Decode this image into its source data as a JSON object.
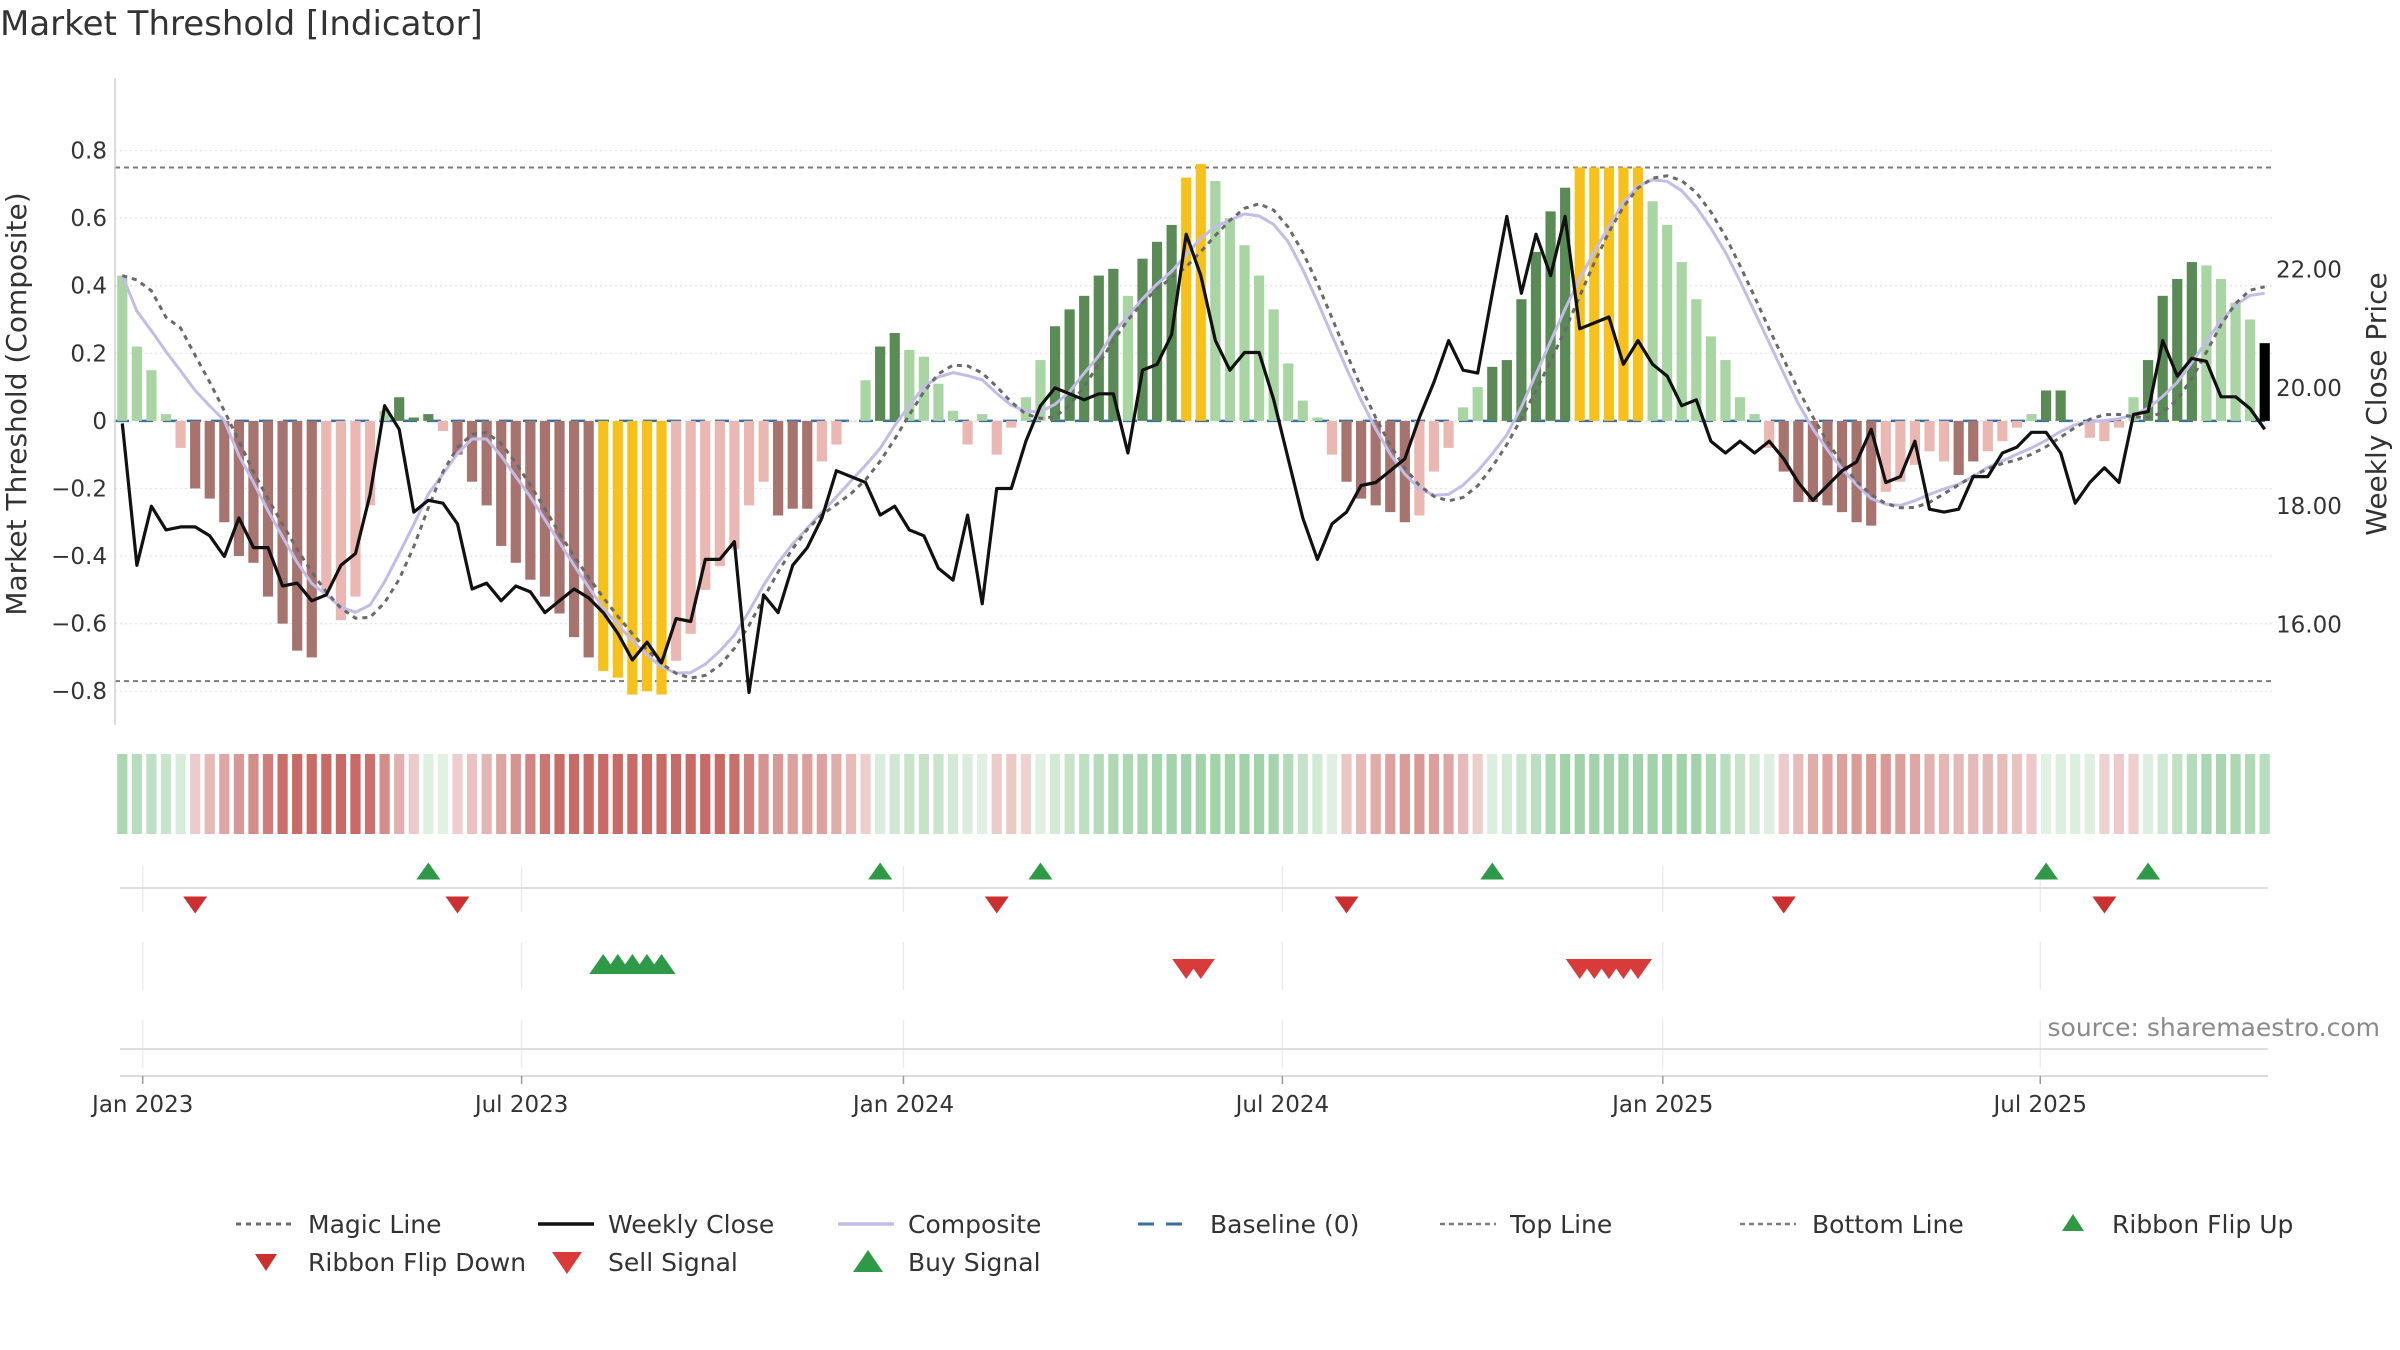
{
  "chart_data": {
    "type": "bar",
    "title": "Market Threshold [Indicator]",
    "source_note": "source: sharemaestro.com",
    "ylabel_left": "Market Threshold (Composite)",
    "ylabel_right": "Weekly Close Price",
    "ylim_left": [
      -0.9,
      0.92
    ],
    "ylim_right": [
      14.3,
      24.7
    ],
    "y_ticks_left": [
      0.8,
      0.6,
      0.4,
      0.2,
      0,
      -0.2,
      -0.4,
      -0.6,
      -0.8
    ],
    "y_tick_labels_left": [
      "0.8",
      "0.6",
      "0.4",
      "0.2",
      "0",
      "−0.2",
      "−0.4",
      "−0.6",
      "−0.8"
    ],
    "y_ticks_right": [
      22,
      20,
      18,
      16
    ],
    "y_tick_labels_right": [
      "22.00",
      "20.00",
      "18.00",
      "16.00"
    ],
    "x_tick_labels": [
      "Jan 2023",
      "Jul 2023",
      "Jan 2024",
      "Jul 2024",
      "Jan 2025",
      "Jul 2025"
    ],
    "x_tick_weeks": [
      1.4,
      27.4,
      53.6,
      79.6,
      105.7,
      131.6
    ],
    "top_line": 0.75,
    "bottom_line": -0.77,
    "baseline": 0,
    "colors": {
      "bull_strong": "#5a8a56",
      "bull_weak": "#a9d4a3",
      "bear_strong": "#a6736f",
      "bear_weak": "#eab7b3",
      "extreme": "#f7c11c",
      "weekly_close": "#111111",
      "composite": "#c3bce6",
      "magic_line": "#6a6a6a",
      "baseline": "#3a6f9b",
      "threshold_lines": "#7a7a7a",
      "ribbon_up": "#2e9a47",
      "ribbon_down": "#cc2f2f",
      "buy": "#2e9a47",
      "sell": "#d93a3a"
    },
    "composite_bars": [
      0.43,
      0.22,
      0.15,
      0.02,
      -0.08,
      -0.2,
      -0.23,
      -0.3,
      -0.4,
      -0.42,
      -0.52,
      -0.6,
      -0.68,
      -0.7,
      -0.5,
      -0.59,
      -0.52,
      -0.25,
      0.03,
      0.07,
      0.01,
      0.02,
      -0.03,
      -0.1,
      -0.18,
      -0.25,
      -0.37,
      -0.42,
      -0.47,
      -0.52,
      -0.57,
      -0.64,
      -0.7,
      -0.74,
      -0.76,
      -0.81,
      -0.8,
      -0.81,
      -0.71,
      -0.63,
      -0.5,
      -0.43,
      -0.38,
      -0.25,
      -0.18,
      -0.28,
      -0.26,
      -0.26,
      -0.12,
      -0.07,
      0,
      0.12,
      0.22,
      0.26,
      0.21,
      0.19,
      0.11,
      0.03,
      -0.07,
      0.02,
      -0.1,
      -0.02,
      0.07,
      0.18,
      0.28,
      0.33,
      0.37,
      0.43,
      0.45,
      0.37,
      0.48,
      0.53,
      0.58,
      0.72,
      0.76,
      0.71,
      0.6,
      0.52,
      0.43,
      0.33,
      0.17,
      0.06,
      0.01,
      -0.1,
      -0.18,
      -0.23,
      -0.25,
      -0.27,
      -0.3,
      -0.28,
      -0.15,
      -0.08,
      0.04,
      0.1,
      0.16,
      0.18,
      0.36,
      0.5,
      0.62,
      0.69,
      0.75,
      0.75,
      0.75,
      0.75,
      0.75,
      0.65,
      0.58,
      0.47,
      0.36,
      0.25,
      0.18,
      0.07,
      0.02,
      -0.08,
      -0.15,
      -0.24,
      -0.24,
      -0.25,
      -0.27,
      -0.3,
      -0.31,
      -0.21,
      -0.18,
      -0.13,
      -0.09,
      -0.12,
      -0.16,
      -0.12,
      -0.09,
      -0.06,
      -0.02,
      0.02,
      0.09,
      0.09,
      0,
      -0.05,
      -0.06,
      -0.02,
      0.07,
      0.18,
      0.37,
      0.42,
      0.47,
      0.46,
      0.42,
      0.35,
      0.3,
      0.23
    ],
    "bar_colors": [
      "bull_weak",
      "bull_weak",
      "bull_weak",
      "bull_weak",
      "bear_weak",
      "bear_strong",
      "bear_strong",
      "bear_strong",
      "bear_strong",
      "bear_strong",
      "bear_strong",
      "bear_strong",
      "bear_strong",
      "bear_strong",
      "bear_weak",
      "bear_weak",
      "bear_weak",
      "bear_weak",
      "bull_weak",
      "bull_strong",
      "bull_strong",
      "bull_strong",
      "bear_weak",
      "bear_strong",
      "bear_strong",
      "bear_strong",
      "bear_strong",
      "bear_strong",
      "bear_strong",
      "bear_strong",
      "bear_strong",
      "bear_strong",
      "bear_strong",
      "extreme",
      "extreme",
      "extreme",
      "extreme",
      "extreme",
      "bear_weak",
      "bear_weak",
      "bear_weak",
      "bear_weak",
      "bear_weak",
      "bear_weak",
      "bear_weak",
      "bear_strong",
      "bear_strong",
      "bear_strong",
      "bear_weak",
      "bear_weak",
      "bull_weak",
      "bull_weak",
      "bull_strong",
      "bull_strong",
      "bull_weak",
      "bull_weak",
      "bull_weak",
      "bull_weak",
      "bear_weak",
      "bull_weak",
      "bear_weak",
      "bear_weak",
      "bull_weak",
      "bull_weak",
      "bull_strong",
      "bull_strong",
      "bull_strong",
      "bull_strong",
      "bull_strong",
      "bull_weak",
      "bull_strong",
      "bull_strong",
      "bull_strong",
      "extreme",
      "extreme",
      "bull_weak",
      "bull_weak",
      "bull_weak",
      "bull_weak",
      "bull_weak",
      "bull_weak",
      "bull_weak",
      "bull_weak",
      "bear_weak",
      "bear_strong",
      "bear_strong",
      "bear_strong",
      "bear_strong",
      "bear_strong",
      "bear_weak",
      "bear_weak",
      "bear_weak",
      "bull_weak",
      "bull_weak",
      "bull_strong",
      "bull_strong",
      "bull_strong",
      "bull_strong",
      "bull_strong",
      "bull_strong",
      "extreme",
      "extreme",
      "extreme",
      "extreme",
      "extreme",
      "bull_weak",
      "bull_weak",
      "bull_weak",
      "bull_weak",
      "bull_weak",
      "bull_weak",
      "bull_weak",
      "bull_weak",
      "bear_weak",
      "bear_strong",
      "bear_strong",
      "bear_strong",
      "bear_strong",
      "bear_strong",
      "bear_strong",
      "bear_strong",
      "bear_weak",
      "bear_weak",
      "bear_weak",
      "bear_weak",
      "bear_weak",
      "bear_strong",
      "bear_strong",
      "bear_weak",
      "bear_weak",
      "bear_weak",
      "bull_weak",
      "bull_strong",
      "bull_strong",
      "bear_weak",
      "bear_weak",
      "bear_weak",
      "bear_weak",
      "bull_weak",
      "bull_strong",
      "bull_strong",
      "bull_strong",
      "bull_strong",
      "bull_weak",
      "bull_weak",
      "bull_weak",
      "bull_weak"
    ],
    "weekly_close": [
      19.4,
      17.0,
      18.0,
      17.6,
      17.65,
      17.65,
      17.5,
      17.15,
      17.8,
      17.3,
      17.3,
      16.65,
      16.7,
      16.4,
      16.5,
      17.0,
      17.2,
      18.2,
      19.7,
      19.3,
      17.9,
      18.1,
      18.05,
      17.7,
      16.6,
      16.7,
      16.4,
      16.65,
      16.55,
      16.2,
      16.4,
      16.6,
      16.45,
      16.2,
      15.85,
      15.4,
      15.7,
      15.35,
      16.1,
      16.05,
      17.1,
      17.1,
      17.4,
      14.85,
      16.5,
      16.2,
      17.0,
      17.3,
      17.8,
      18.6,
      18.5,
      18.4,
      17.85,
      18.0,
      17.6,
      17.5,
      16.95,
      16.75,
      17.85,
      16.35,
      18.3,
      18.3,
      19.1,
      19.7,
      20.0,
      19.9,
      19.8,
      19.9,
      19.9,
      18.9,
      20.3,
      20.4,
      20.9,
      22.6,
      21.9,
      20.8,
      20.3,
      20.6,
      20.6,
      19.8,
      18.8,
      17.8,
      17.1,
      17.7,
      17.9,
      18.35,
      18.4,
      18.6,
      18.8,
      19.5,
      20.1,
      20.8,
      20.3,
      20.25,
      21.6,
      22.9,
      21.6,
      22.6,
      21.9,
      22.9,
      21.0,
      21.1,
      21.2,
      20.4,
      20.8,
      20.4,
      20.2,
      19.7,
      19.8,
      19.1,
      18.9,
      19.1,
      18.9,
      19.1,
      18.8,
      18.4,
      18.1,
      18.35,
      18.6,
      18.75,
      19.3,
      18.4,
      18.5,
      19.1,
      17.95,
      17.9,
      17.95,
      18.5,
      18.5,
      18.9,
      19.0,
      19.25,
      19.25,
      18.9,
      18.05,
      18.4,
      18.65,
      18.4,
      19.55,
      19.6,
      20.8,
      20.2,
      20.5,
      20.45,
      19.85,
      19.85,
      19.65,
      19.3
    ]
  },
  "legend": {
    "magic_line": "Magic Line",
    "weekly_close": "Weekly Close",
    "composite": "Composite",
    "baseline": "Baseline (0)",
    "top_line": "Top Line",
    "bottom_line": "Bottom Line",
    "ribbon_flip_up": "Ribbon Flip Up",
    "ribbon_flip_down": "Ribbon Flip Down",
    "sell_signal": "Sell Signal",
    "buy_signal": "Buy Signal"
  }
}
